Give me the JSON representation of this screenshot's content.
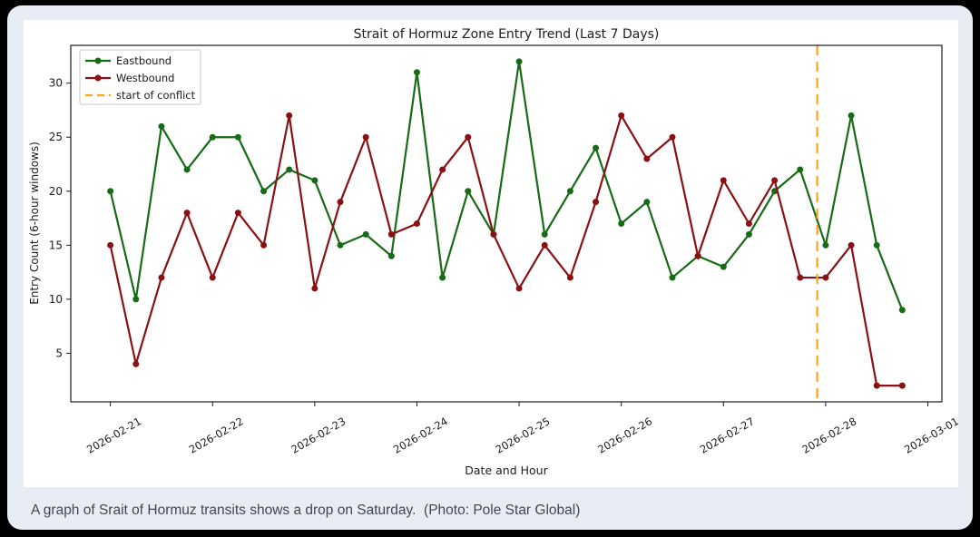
{
  "page": {
    "background_color": "#000000",
    "card_background_color": "#e7ecf5",
    "caption": "A graph of Srait of Hormuz transits shows a drop on Saturday.  (Photo: Pole Star Global)"
  },
  "chart_data": {
    "type": "line",
    "title": "Strait of Hormuz Zone Entry Trend (Last 7 Days)",
    "xlabel": "Date and Hour",
    "ylabel": "Entry Count (6-hour windows)",
    "grid": false,
    "legend_position": "upper left",
    "x_tick_labels": [
      "2026-02-21",
      "2026-02-22",
      "2026-02-23",
      "2026-02-24",
      "2026-02-25",
      "2026-02-26",
      "2026-02-27",
      "2026-02-28",
      "2026-03-01"
    ],
    "x_tick_indices": [
      0,
      4,
      8,
      12,
      16,
      20,
      24,
      28,
      32
    ],
    "points_per_day": 4,
    "xlim_index": [
      -1.55,
      32.55
    ],
    "y_ticks": [
      5,
      10,
      15,
      20,
      25,
      30
    ],
    "ylim": [
      0.5,
      33.5
    ],
    "series": [
      {
        "name": "Eastbound",
        "color": "#166b16",
        "marker": "circle",
        "values": [
          20,
          10,
          26,
          22,
          25,
          25,
          20,
          22,
          21,
          15,
          16,
          14,
          31,
          12,
          20,
          16,
          32,
          16,
          20,
          24,
          17,
          19,
          12,
          14,
          13,
          16,
          20,
          22,
          15,
          27,
          15,
          9
        ]
      },
      {
        "name": "Westbound",
        "color": "#8b1014",
        "marker": "circle",
        "values": [
          15,
          4,
          12,
          18,
          12,
          18,
          15,
          27,
          11,
          19,
          25,
          16,
          17,
          22,
          25,
          16,
          11,
          15,
          12,
          19,
          27,
          23,
          25,
          14,
          21,
          17,
          21,
          12,
          12,
          15,
          2,
          2
        ]
      }
    ],
    "vline": {
      "label": "start of conflict",
      "color": "#ffa418",
      "line_style": "dashed",
      "x_index": 27.67
    }
  }
}
